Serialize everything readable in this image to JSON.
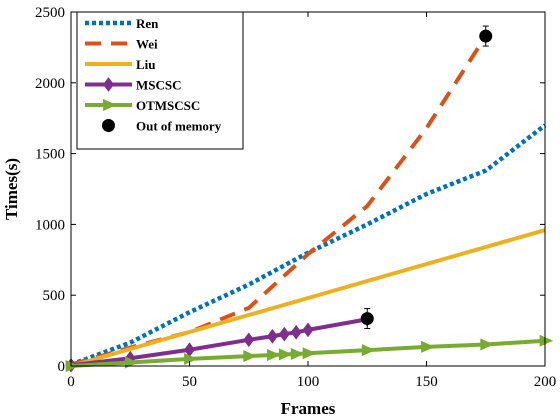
{
  "chart_data": {
    "type": "line",
    "xlabel": "Frames",
    "ylabel": "Times(s)",
    "xlim": [
      0,
      200
    ],
    "ylim": [
      0,
      2500
    ],
    "xticks": [
      0,
      50,
      100,
      150,
      200
    ],
    "yticks": [
      0,
      500,
      1000,
      1500,
      2000,
      2500
    ],
    "grid": false,
    "legend_position": "top-left",
    "series": [
      {
        "name": "Ren",
        "color": "#0072BD",
        "style": "dotted",
        "marker": "none",
        "x": [
          0,
          25,
          50,
          75,
          100,
          125,
          150,
          175,
          200
        ],
        "y": [
          10,
          165,
          380,
          575,
          800,
          1000,
          1215,
          1380,
          1700
        ]
      },
      {
        "name": "Wei",
        "color": "#D95319",
        "style": "dashed",
        "marker": "none",
        "x": [
          0,
          25,
          50,
          75,
          100,
          125,
          150,
          175
        ],
        "y": [
          10,
          130,
          240,
          410,
          790,
          1130,
          1680,
          2330
        ]
      },
      {
        "name": "Liu",
        "color": "#EDB120",
        "style": "solid",
        "marker": "none",
        "x": [
          0,
          200
        ],
        "y": [
          0,
          960
        ]
      },
      {
        "name": "MSCSC",
        "color": "#7E2F8E",
        "style": "solid",
        "marker": "diamond",
        "x": [
          0,
          25,
          50,
          75,
          85,
          90,
          95,
          100,
          125
        ],
        "y": [
          5,
          55,
          115,
          185,
          210,
          225,
          238,
          255,
          330
        ]
      },
      {
        "name": "OTMSCSC",
        "color": "#77AC30",
        "style": "solid",
        "marker": "triangle-right",
        "x": [
          0,
          25,
          50,
          75,
          85,
          90,
          95,
          100,
          125,
          150,
          175,
          200
        ],
        "y": [
          0,
          25,
          50,
          70,
          78,
          82,
          85,
          90,
          112,
          135,
          152,
          178
        ]
      }
    ],
    "out_of_memory": {
      "name": "Out of memory",
      "color": "#000000",
      "marker": "circle",
      "points": [
        {
          "x": 125,
          "y": 335
        },
        {
          "x": 175,
          "y": 2330
        }
      ]
    }
  }
}
